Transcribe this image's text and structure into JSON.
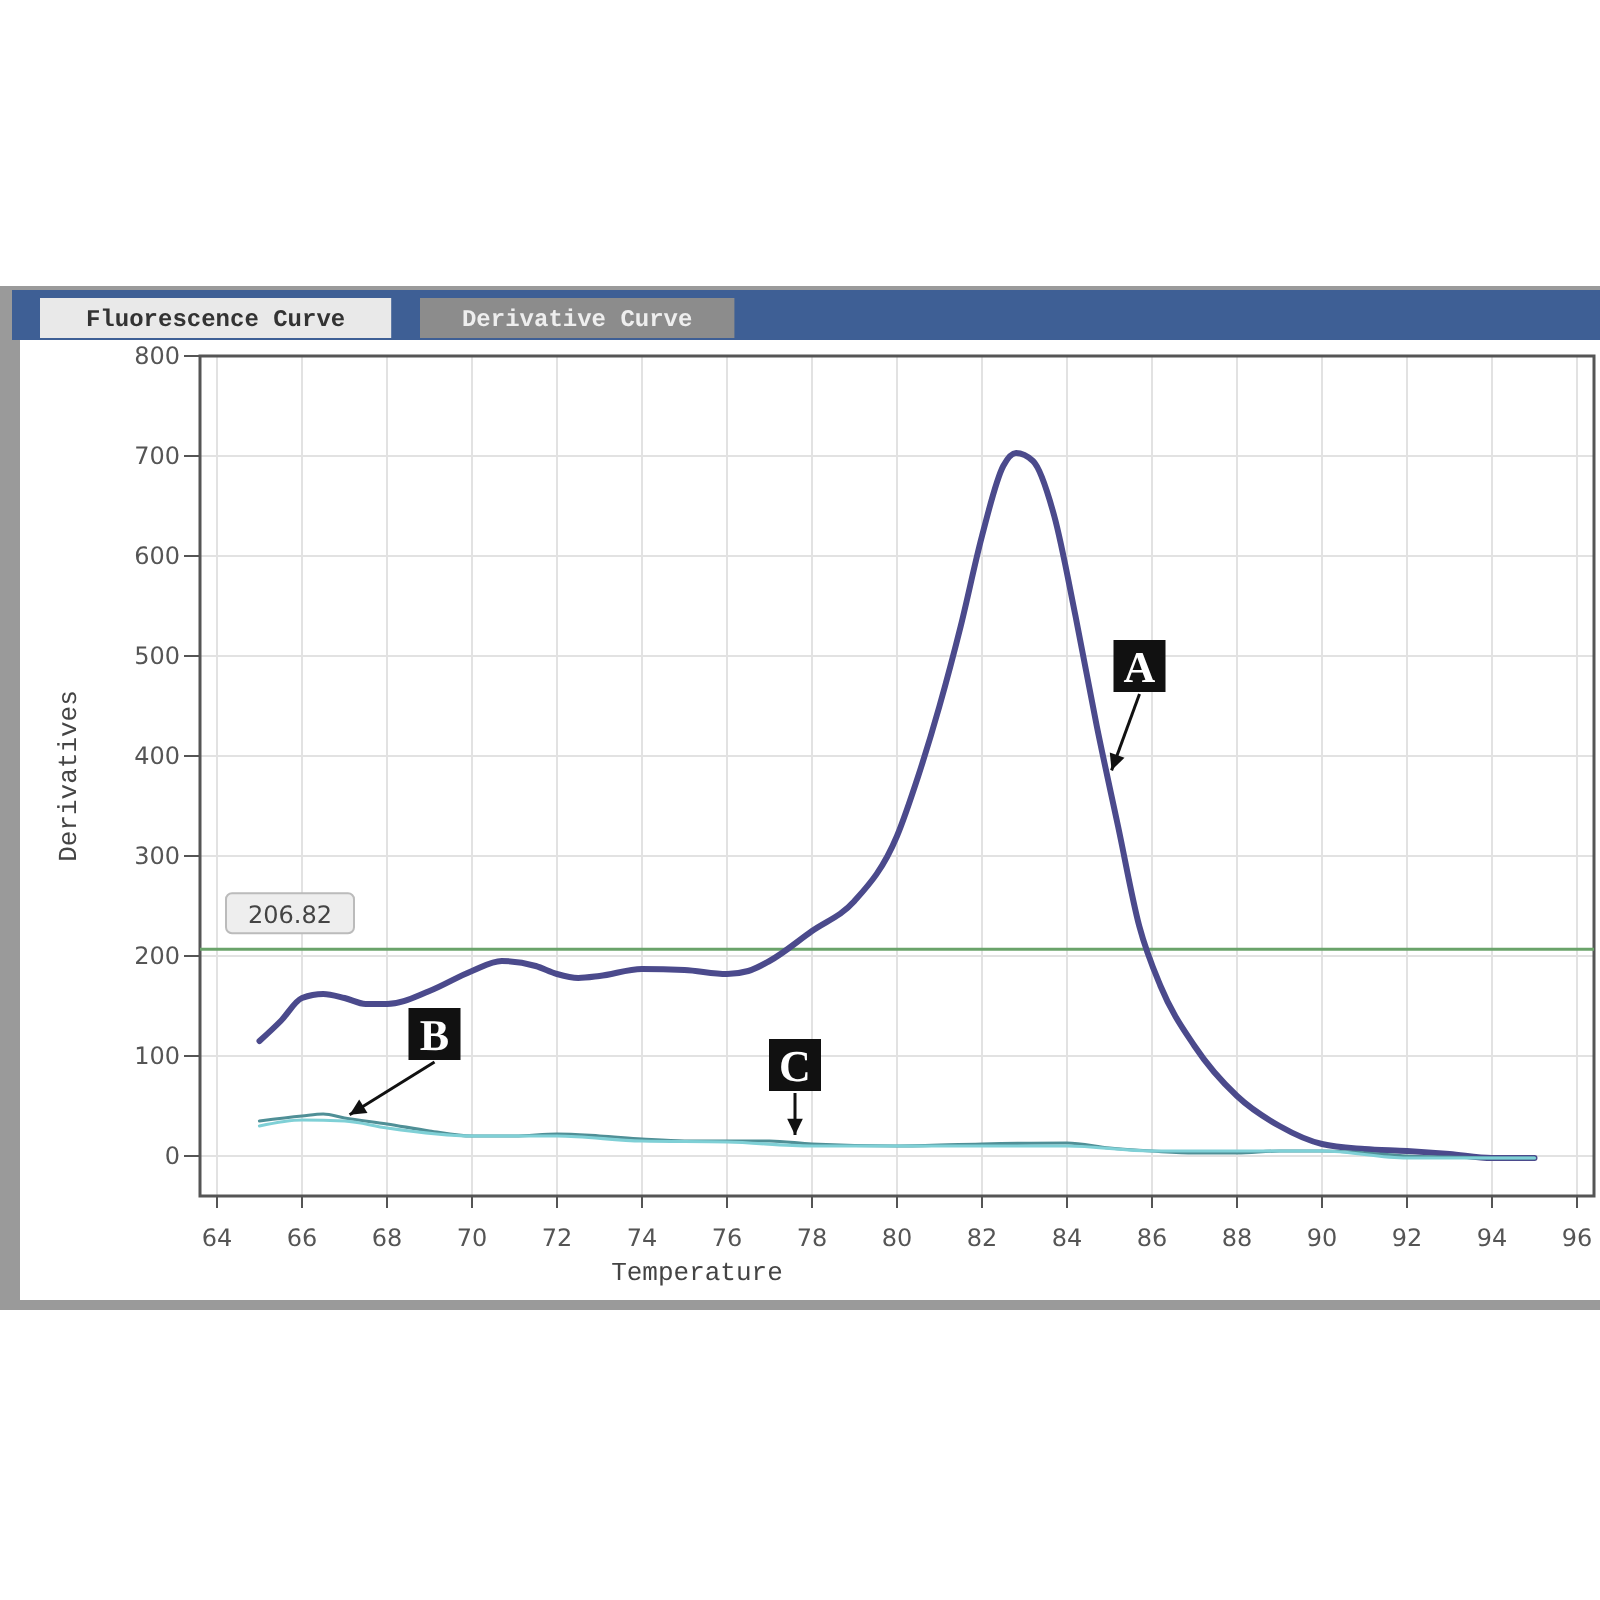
{
  "chart_data": {
    "type": "line",
    "xlabel": "Temperature",
    "ylabel": "Derivatives",
    "xlim": [
      63.6,
      96.4
    ],
    "ylim": [
      -40,
      800
    ],
    "xticks": [
      64,
      66,
      68,
      70,
      72,
      74,
      76,
      78,
      80,
      82,
      84,
      86,
      88,
      90,
      92,
      94,
      96
    ],
    "yticks": [
      0,
      100,
      200,
      300,
      400,
      500,
      600,
      700,
      800
    ],
    "grid": true,
    "series": [
      {
        "color": "#4b4a8c",
        "x": [
          65,
          65.5,
          66,
          66.5,
          67,
          67.5,
          68,
          69,
          70,
          70.7,
          71.5,
          72,
          72.5,
          73,
          74,
          75,
          76,
          76.5,
          77,
          78,
          79,
          80,
          80.5,
          81,
          81.5,
          82,
          82.5,
          82.8,
          83.2,
          83.7,
          84.2,
          84.7,
          85.2,
          85.7,
          86.2,
          87,
          88,
          89,
          90,
          91,
          92,
          93,
          94,
          95
        ],
        "values": [
          115,
          135,
          158,
          162,
          158,
          152,
          152,
          165,
          185,
          195,
          190,
          182,
          178,
          180,
          187,
          186,
          182,
          185,
          195,
          225,
          255,
          320,
          380,
          450,
          530,
          620,
          690,
          703,
          695,
          640,
          540,
          430,
          330,
          230,
          170,
          110,
          60,
          30,
          12,
          7,
          5,
          2,
          -2,
          -2
        ]
      },
      {
        "color": "#4f8f96",
        "x": [
          65,
          66,
          66.5,
          67,
          68,
          69,
          70,
          71,
          72,
          73,
          74,
          75,
          76,
          77,
          78,
          80,
          82,
          84,
          85,
          86,
          87,
          88,
          89,
          90,
          91,
          92,
          93,
          94,
          95
        ],
        "values": [
          35,
          40,
          42,
          38,
          32,
          25,
          20,
          20,
          22,
          20,
          17,
          15,
          15,
          15,
          12,
          10,
          12,
          13,
          8,
          5,
          3,
          3,
          5,
          5,
          3,
          0,
          -1,
          -2,
          -2
        ]
      },
      {
        "color": "#7fd0d6",
        "x": [
          65,
          66,
          67,
          68,
          70,
          72,
          74,
          76,
          78,
          80,
          82,
          84,
          86,
          88,
          90,
          92,
          94,
          95
        ],
        "values": [
          30,
          36,
          35,
          28,
          20,
          20,
          15,
          14,
          10,
          10,
          10,
          10,
          5,
          5,
          5,
          -2,
          -2,
          -2
        ]
      }
    ],
    "ref_lines": [
      {
        "axis": "y",
        "value": 206.82,
        "label": "206.82",
        "color": "#6aa36a"
      }
    ],
    "annotations": [
      "Fluorescence Curve",
      "Derivative Curve",
      {
        "text": "A",
        "x": 85,
        "y": 380
      },
      {
        "text": "B",
        "x": 67,
        "y": 38
      },
      {
        "text": "C",
        "x": 77.6,
        "y": 15
      }
    ]
  }
}
